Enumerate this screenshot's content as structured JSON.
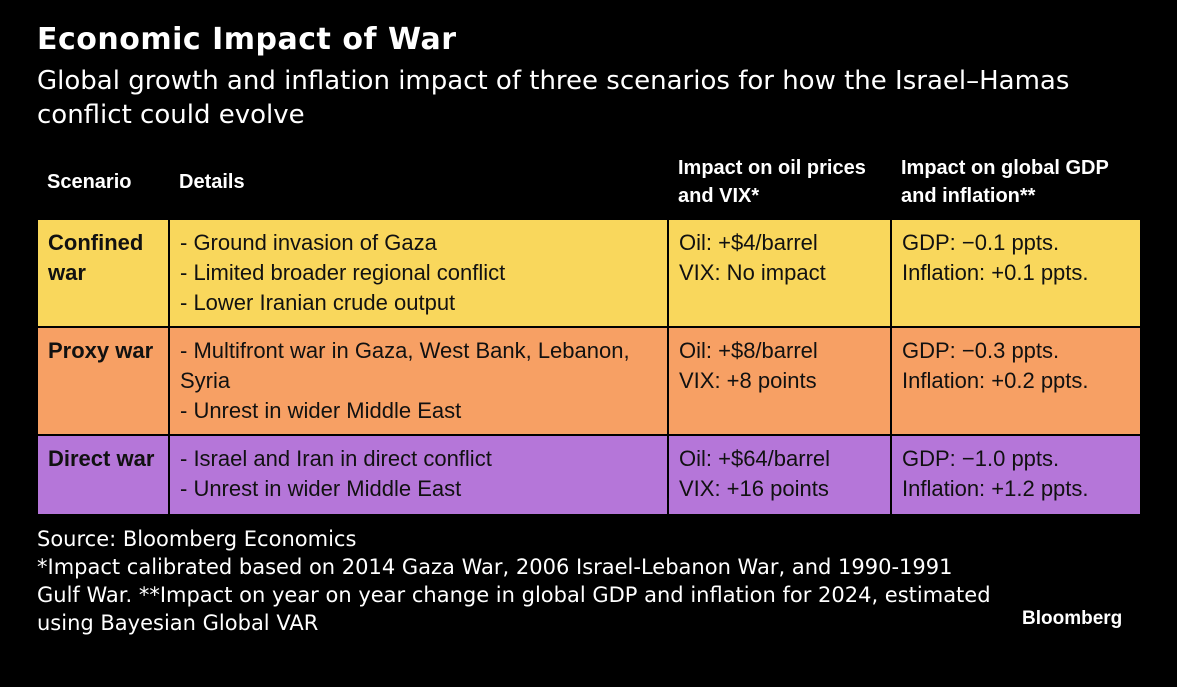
{
  "chart_data": {
    "type": "table",
    "title": "Economic Impact of War",
    "subtitle": "Global growth and inflation impact of three scenarios for how the Israel–Hamas conflict could evolve",
    "columns": [
      "Scenario",
      "Details",
      "Impact on oil prices and VIX*",
      "Impact on global GDP and inflation**"
    ],
    "rows": [
      {
        "scenario": "Confined war",
        "color": "#f9d75c",
        "details": [
          "- Ground invasion of Gaza",
          "- Limited broader regional conflict",
          "- Lower Iranian crude output"
        ],
        "oil": "Oil: +$4/barrel",
        "vix": "VIX: No impact",
        "gdp": "GDP: −0.1 ppts.",
        "inflation": "Inflation: +0.1 ppts."
      },
      {
        "scenario": "Proxy war",
        "color": "#f7a064",
        "details": [
          "- Multifront war in Gaza, West Bank, Lebanon, Syria",
          "- Unrest in wider Middle East"
        ],
        "oil": "Oil: +$8/barrel",
        "vix": "VIX: +8 points",
        "gdp": "GDP: −0.3 ppts.",
        "inflation": "Inflation: +0.2 ppts."
      },
      {
        "scenario": "Direct war",
        "color": "#b576d9",
        "details": [
          "- Israel and Iran in direct conflict",
          "- Unrest in wider Middle East"
        ],
        "oil": "Oil: +$64/barrel",
        "vix": "VIX: +16 points",
        "gdp": "GDP: −1.0 ppts.",
        "inflation": "Inflation: +1.2 ppts."
      }
    ],
    "source": "Source: Bloomberg Economics",
    "footnote": "*Impact calibrated based on 2014 Gaza War, 2006 Israel-Lebanon War, and 1990-1991 Gulf War. **Impact on year on year change in global GDP and inflation for 2024, estimated using Bayesian Global VAR",
    "brand": "Bloomberg"
  }
}
